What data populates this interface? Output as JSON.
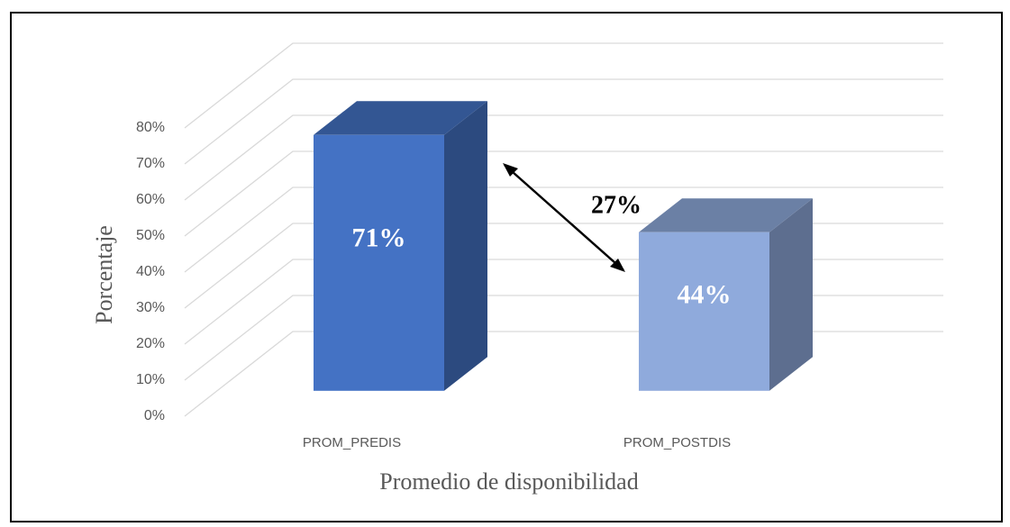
{
  "chart_data": {
    "type": "bar3d",
    "categories": [
      "PROM_PREDIS",
      "PROM_POSTDIS"
    ],
    "series": [
      {
        "values": [
          71,
          44
        ],
        "value_labels": [
          "71%",
          "44%"
        ],
        "colors": [
          "#4472c4",
          "#8faadc"
        ]
      }
    ],
    "ylim": [
      0,
      80
    ],
    "yticks": [
      {
        "value": 0,
        "label": "0%"
      },
      {
        "value": 10,
        "label": "10%"
      },
      {
        "value": 20,
        "label": "20%"
      },
      {
        "value": 30,
        "label": "30%"
      },
      {
        "value": 40,
        "label": "40%"
      },
      {
        "value": 50,
        "label": "50%"
      },
      {
        "value": 60,
        "label": "60%"
      },
      {
        "value": 70,
        "label": "70%"
      },
      {
        "value": 80,
        "label": "80%"
      }
    ],
    "grid": true,
    "ylabel": "Porcentaje",
    "xlabel": "Promedio de disponibilidad",
    "annotation": "27%"
  }
}
